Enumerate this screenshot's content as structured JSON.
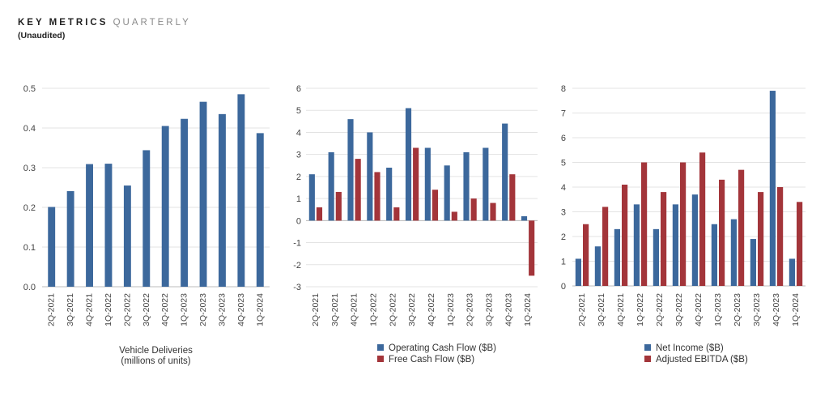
{
  "header": {
    "title_bold": "KEY METRICS",
    "title_light": "QUARTERLY",
    "subtitle": "(Unaudited)"
  },
  "colors": {
    "blue": "#3c689c",
    "red": "#a3353a",
    "grid": "#e3e3e3",
    "axis": "#bdbdbd"
  },
  "chart_data": [
    {
      "type": "bar",
      "categories": [
        "2Q-2021",
        "3Q-2021",
        "4Q-2021",
        "1Q-2022",
        "2Q-2022",
        "3Q-2022",
        "4Q-2022",
        "1Q-2023",
        "2Q-2023",
        "3Q-2023",
        "4Q-2023",
        "1Q-2024"
      ],
      "series": [
        {
          "values": [
            0.201,
            0.241,
            0.309,
            0.31,
            0.255,
            0.344,
            0.405,
            0.423,
            0.466,
            0.435,
            0.485,
            0.387
          ],
          "color": "#3c689c"
        }
      ],
      "ylim": [
        0,
        0.5
      ],
      "yticks": [
        "0.0",
        "0.1",
        "0.2",
        "0.3",
        "0.4",
        "0.5"
      ],
      "xlabel_lines": [
        "Vehicle Deliveries",
        "(millions of units)"
      ],
      "legend": [],
      "grid": true
    },
    {
      "type": "bar",
      "categories": [
        "2Q-2021",
        "3Q-2021",
        "4Q-2021",
        "1Q-2022",
        "2Q-2022",
        "3Q-2022",
        "4Q-2022",
        "1Q-2023",
        "2Q-2023",
        "3Q-2023",
        "4Q-2023",
        "1Q-2024"
      ],
      "series": [
        {
          "name": "Operating Cash Flow ($B)",
          "values": [
            2.1,
            3.1,
            4.6,
            4.0,
            2.4,
            5.1,
            3.3,
            2.5,
            3.1,
            3.3,
            4.4,
            0.2
          ],
          "color": "#3c689c"
        },
        {
          "name": "Free Cash Flow ($B)",
          "values": [
            0.6,
            1.3,
            2.8,
            2.2,
            0.6,
            3.3,
            1.4,
            0.4,
            1.0,
            0.8,
            2.1,
            -2.5
          ],
          "color": "#a3353a"
        }
      ],
      "ylim": [
        -3,
        6
      ],
      "yticks": [
        "-3",
        "-2",
        "-1",
        "0",
        "1",
        "2",
        "3",
        "4",
        "5",
        "6"
      ],
      "xlabel_lines": [],
      "legend": [
        "Operating Cash Flow ($B)",
        "Free Cash Flow ($B)"
      ],
      "legend_placement": "bottom",
      "grid": true
    },
    {
      "type": "bar",
      "categories": [
        "2Q-2021",
        "3Q-2021",
        "4Q-2021",
        "1Q-2022",
        "2Q-2022",
        "3Q-2022",
        "4Q-2022",
        "1Q-2023",
        "2Q-2023",
        "3Q-2023",
        "4Q-2023",
        "1Q-2024"
      ],
      "series": [
        {
          "name": "Net Income ($B)",
          "values": [
            1.1,
            1.6,
            2.3,
            3.3,
            2.3,
            3.3,
            3.7,
            2.5,
            2.7,
            1.9,
            7.9,
            1.1
          ],
          "color": "#3c689c"
        },
        {
          "name": "Adjusted EBITDA ($B)",
          "values": [
            2.5,
            3.2,
            4.1,
            5.0,
            3.8,
            5.0,
            5.4,
            4.3,
            4.7,
            3.8,
            4.0,
            3.4
          ],
          "color": "#a3353a"
        }
      ],
      "ylim": [
        0,
        8
      ],
      "yticks": [
        "0",
        "1",
        "2",
        "3",
        "4",
        "5",
        "6",
        "7",
        "8"
      ],
      "xlabel_lines": [],
      "legend": [
        "Net Income ($B)",
        "Adjusted EBITDA ($B)"
      ],
      "legend_placement": "bottom",
      "grid": true
    }
  ]
}
